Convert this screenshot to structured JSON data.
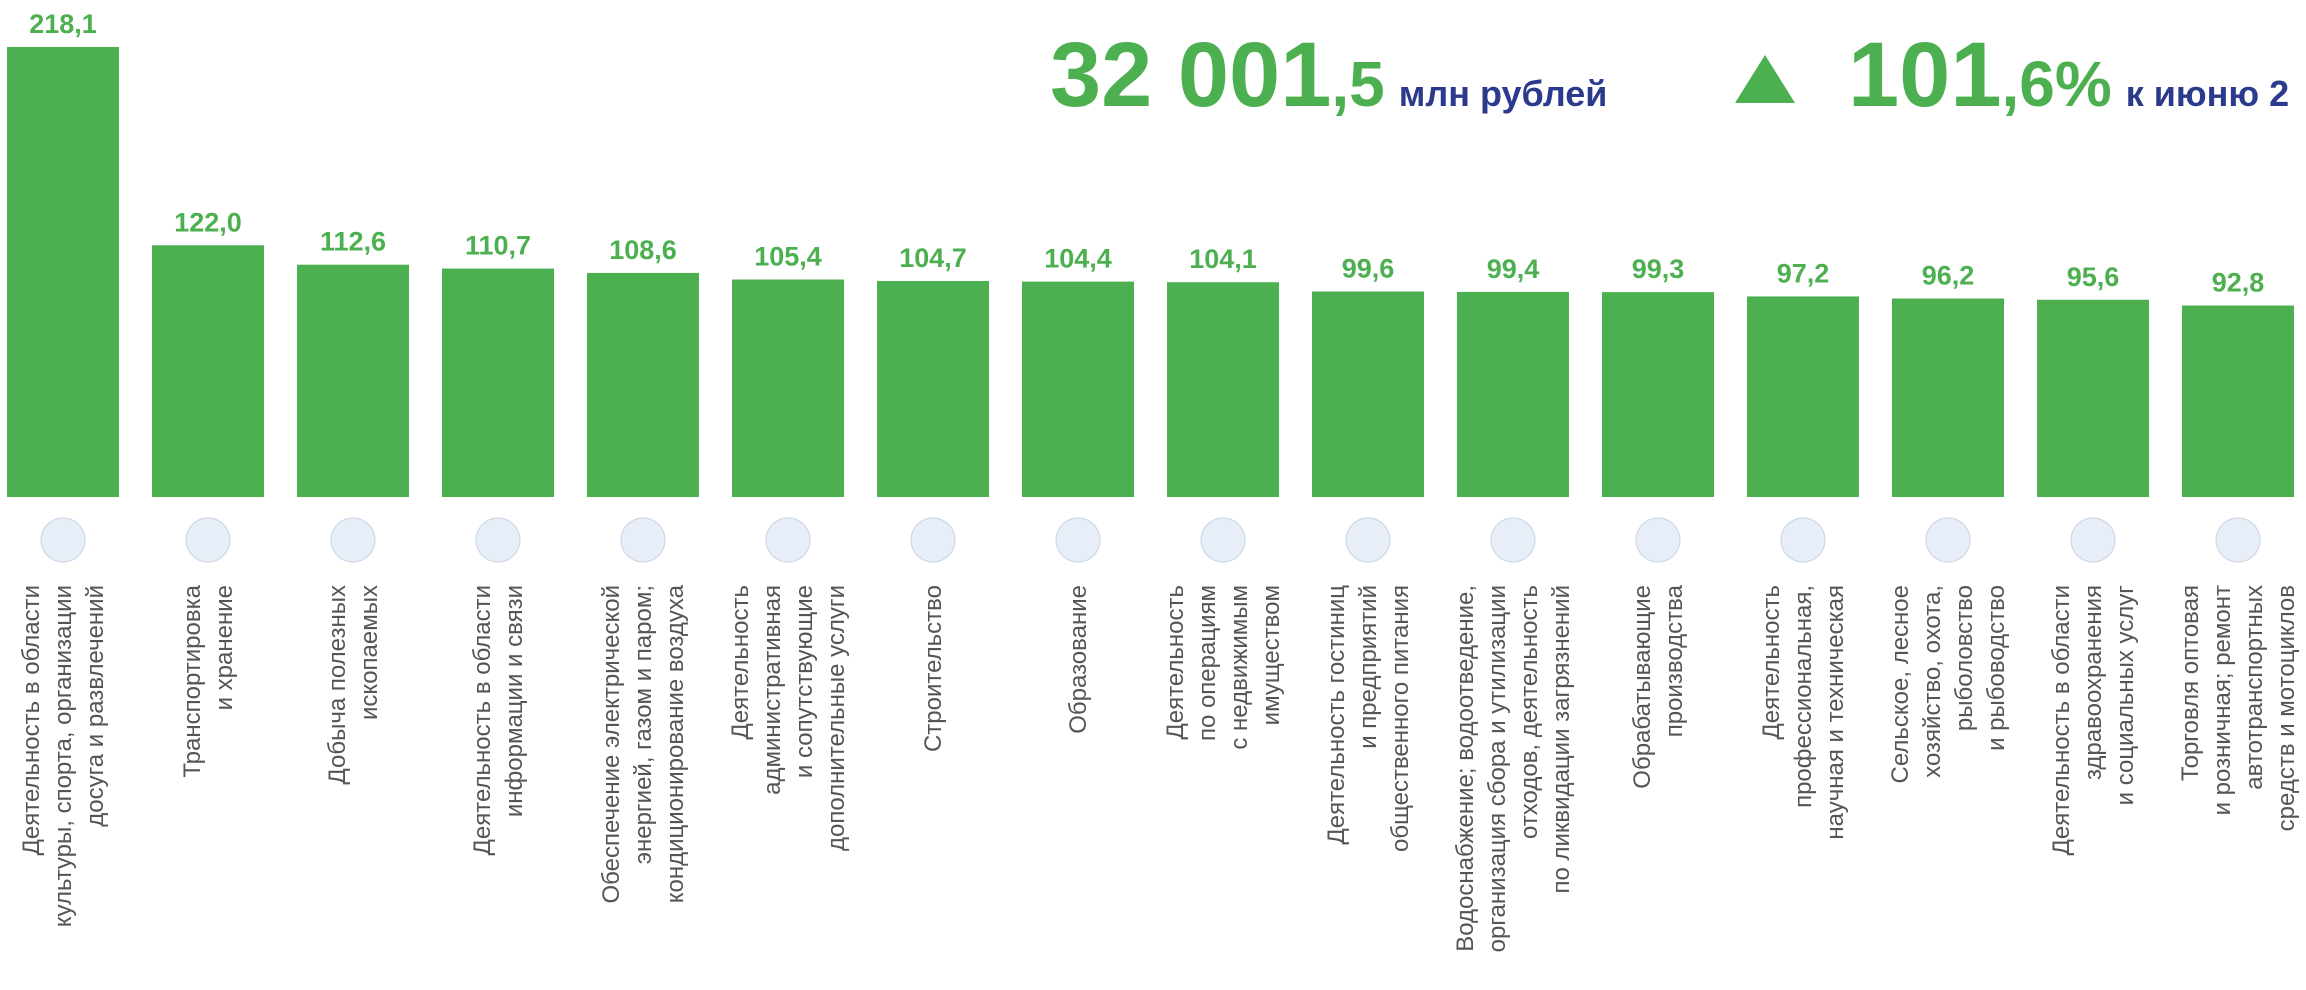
{
  "header": {
    "total_int": "32 001",
    "total_dec": ",5",
    "total_unit": "млн рублей",
    "index_int": "101",
    "index_dec": ",6%",
    "index_text": "к июню 2"
  },
  "chart_data": {
    "type": "bar",
    "color": "#4caf50",
    "categories": [
      "Деятельность в области\nкультуры, спорта, организации\nдосуга и развлечений",
      "Транспортировка\nи хранение",
      "Добыча полезных\nископаемых",
      "Деятельность в области\nинформации и связи",
      "Обеспечение электрической\nэнергией, газом и паром;\nкондиционирование воздуха",
      "Деятельность\nадминистративная\nи сопутствующие\nдополнительные услуги",
      "Строительство",
      "Образование",
      "Деятельность\nпо операциям\nс недвижимым\nимуществом",
      "Деятельность гостиниц\nи предприятий\nобщественного питания",
      "Водоснабжение; водоотведение,\nорганизация сбора и утилизации\nотходов, деятельность\nпо ликвидации загрязнений",
      "Обрабатывающие\nпроизводства",
      "Деятельность\nпрофессиональная,\nнаучная и техническая",
      "Сельское, лесное\nхозяйство, охота,\nрыболовство\nи рыбоводство",
      "Деятельность в области\nздравоохранения\nи социальных услуг",
      "Торговля оптовая\nи розничная; ремонт\nавтотранспортных\nсредств и мотоциклов"
    ],
    "values": [
      218.1,
      122.0,
      112.6,
      110.7,
      108.6,
      105.4,
      104.7,
      104.4,
      104.1,
      99.6,
      99.4,
      99.3,
      97.2,
      96.2,
      95.6,
      92.8
    ],
    "value_labels": [
      "218,1",
      "122,0",
      "112,6",
      "110,7",
      "108,6",
      "105,4",
      "104,7",
      "104,4",
      "104,1",
      "99,6",
      "99,4",
      "99,3",
      "97,2",
      "96,2",
      "95,6",
      "92,8"
    ]
  }
}
